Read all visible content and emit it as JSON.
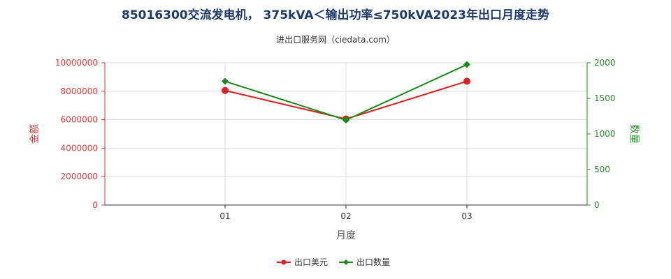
{
  "chart_data": {
    "type": "line",
    "title": "85016300交流发电机， 375kVA＜输出功率≤750kVA2023年出口月度走势",
    "subtitle": "进出口服务网（ciedata.com）",
    "xlabel": "月度",
    "categories": [
      "01",
      "02",
      "03"
    ],
    "y_left": {
      "label": "金额",
      "range": [
        0,
        10000000
      ],
      "ticks": [
        "0",
        "2000000",
        "4000000",
        "6000000",
        "8000000",
        "10000000"
      ],
      "color": "#e02020"
    },
    "y_right": {
      "label": "数量",
      "range": [
        0,
        2000
      ],
      "ticks": [
        "0",
        "500",
        "1000",
        "1500",
        "2000"
      ],
      "color": "#1a8a1a"
    },
    "series": [
      {
        "name": "出口美元",
        "axis": "left",
        "color": "#e02020",
        "marker": "circle",
        "values": [
          8050000,
          6050000,
          8700000
        ]
      },
      {
        "name": "出口数量",
        "axis": "right",
        "color": "#1a8a1a",
        "marker": "diamond",
        "values": [
          1740,
          1195,
          1975
        ]
      }
    ],
    "grid": true,
    "legend_position": "bottom-center"
  }
}
